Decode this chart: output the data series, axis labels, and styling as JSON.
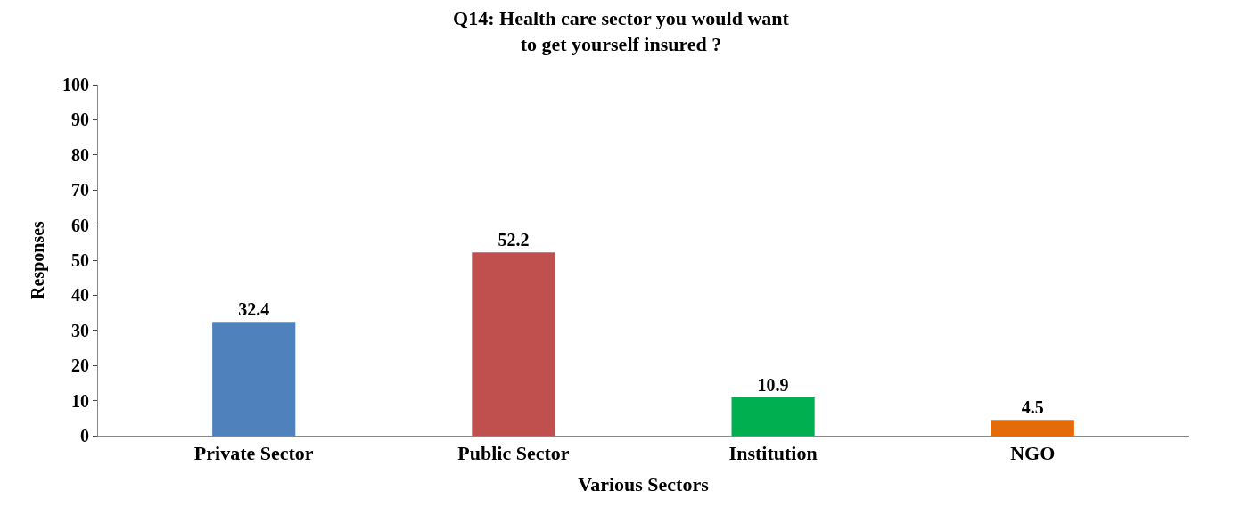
{
  "chart_data": {
    "type": "bar",
    "title": "Q14: Health care sector you would want\nto get yourself insured ?",
    "xlabel": "Various Sectors",
    "ylabel": "Responses",
    "categories": [
      "Private Sector",
      "Public Sector",
      "Institution",
      "NGO"
    ],
    "values": [
      32.4,
      52.2,
      10.9,
      4.5
    ],
    "colors": [
      "#4f81bd",
      "#c0504d",
      "#00b050",
      "#e36c09"
    ],
    "ylim": [
      0,
      100
    ],
    "yticks": [
      0,
      10,
      20,
      30,
      40,
      50,
      60,
      70,
      80,
      90,
      100
    ],
    "grid": false,
    "data_labels": true,
    "legend": false
  }
}
